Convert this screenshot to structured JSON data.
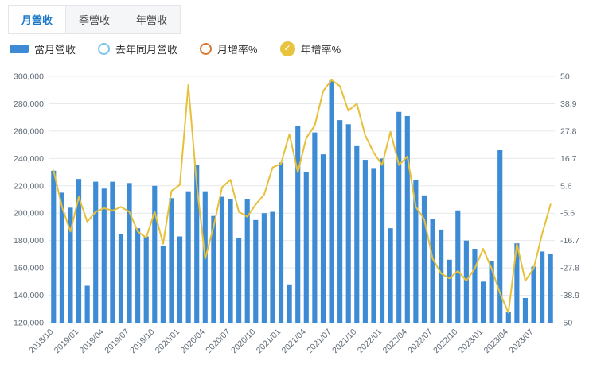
{
  "tabs": [
    {
      "label": "月營收",
      "active": true
    },
    {
      "label": "季營收",
      "active": false
    },
    {
      "label": "年營收",
      "active": false
    }
  ],
  "legend": [
    {
      "label": "當月營收",
      "type": "bar",
      "color": "#3d8bd5",
      "checked": true
    },
    {
      "label": "去年同月營收",
      "type": "circle-outline",
      "color": "#7ec4ea",
      "checked": false
    },
    {
      "label": "月增率%",
      "type": "circle-outline",
      "color": "#d9772f",
      "checked": false
    },
    {
      "label": "年增率%",
      "type": "circle-check",
      "color": "#e8c33d",
      "checked": true,
      "check_glyph": "✓"
    }
  ],
  "chart_data": {
    "type": "bar",
    "subtype": "bar+line combo, dual axis",
    "x": [
      "2018/10",
      "2018/11",
      "2018/12",
      "2019/01",
      "2019/02",
      "2019/03",
      "2019/04",
      "2019/05",
      "2019/06",
      "2019/07",
      "2019/08",
      "2019/09",
      "2019/10",
      "2019/11",
      "2019/12",
      "2020/01",
      "2020/02",
      "2020/03",
      "2020/04",
      "2020/05",
      "2020/06",
      "2020/07",
      "2020/08",
      "2020/09",
      "2020/10",
      "2020/11",
      "2020/12",
      "2021/01",
      "2021/02",
      "2021/03",
      "2021/04",
      "2021/05",
      "2021/06",
      "2021/07",
      "2021/08",
      "2021/09",
      "2021/10",
      "2021/11",
      "2021/12",
      "2022/01",
      "2022/02",
      "2022/03",
      "2022/04",
      "2022/05",
      "2022/06",
      "2022/07",
      "2022/08",
      "2022/09",
      "2022/10",
      "2022/11",
      "2022/12",
      "2023/01",
      "2023/02",
      "2023/03",
      "2023/04",
      "2023/05",
      "2023/06",
      "2023/07",
      "2023/08",
      "2023/09"
    ],
    "x_tick_every": 3,
    "series": [
      {
        "name": "當月營收",
        "type": "bar",
        "axis": "left",
        "color": "#3d8bd5",
        "values": [
          231000,
          215000,
          204000,
          225000,
          147000,
          223000,
          218000,
          223000,
          185000,
          222000,
          189000,
          183000,
          220000,
          176000,
          211000,
          183000,
          216000,
          235000,
          216000,
          198000,
          212000,
          210000,
          182000,
          210000,
          195000,
          200000,
          201000,
          237000,
          148000,
          264000,
          230000,
          259000,
          243000,
          297000,
          268000,
          265000,
          249000,
          239000,
          233000,
          240000,
          189000,
          274000,
          271000,
          224000,
          213000,
          196000,
          188000,
          166000,
          202000,
          180000,
          174000,
          150000,
          165000,
          246000,
          128000,
          178000,
          138000,
          161000,
          172000,
          170000
        ]
      },
      {
        "name": "年增率%",
        "type": "line",
        "axis": "right",
        "color": "#e7c03a",
        "values": [
          11.7,
          -3,
          -13,
          1,
          -9,
          -5,
          -3.5,
          -4.5,
          -3,
          -5,
          -13,
          -15.5,
          -5,
          -18,
          3.5,
          6,
          46.5,
          6,
          -24,
          -11,
          5,
          8,
          -5,
          -7,
          -2,
          2,
          13,
          14.5,
          26.5,
          11,
          25,
          30,
          44,
          48.5,
          46,
          36,
          38.9,
          26,
          19,
          14,
          27.5,
          14,
          17.5,
          -3,
          -8,
          -24,
          -30,
          -32,
          -29,
          -33,
          -28,
          -20,
          -28,
          -38,
          -46,
          -18,
          -33,
          -28,
          -14,
          -2
        ]
      }
    ],
    "left_axis": {
      "min": 120000,
      "max": 300000,
      "tick_labels": [
        "300,000",
        "280,000",
        "260,000",
        "240,000",
        "220,000",
        "200,000",
        "180,000",
        "160,000",
        "140,000",
        "120,000"
      ]
    },
    "right_axis": {
      "min": -50,
      "max": 50,
      "tick_labels": [
        "50",
        "38.9",
        "27.8",
        "16.7",
        "5.6",
        "-5.6",
        "-16.7",
        "-27.8",
        "-38.9",
        "-50"
      ]
    },
    "grid": true,
    "legend_position": "top-left"
  }
}
